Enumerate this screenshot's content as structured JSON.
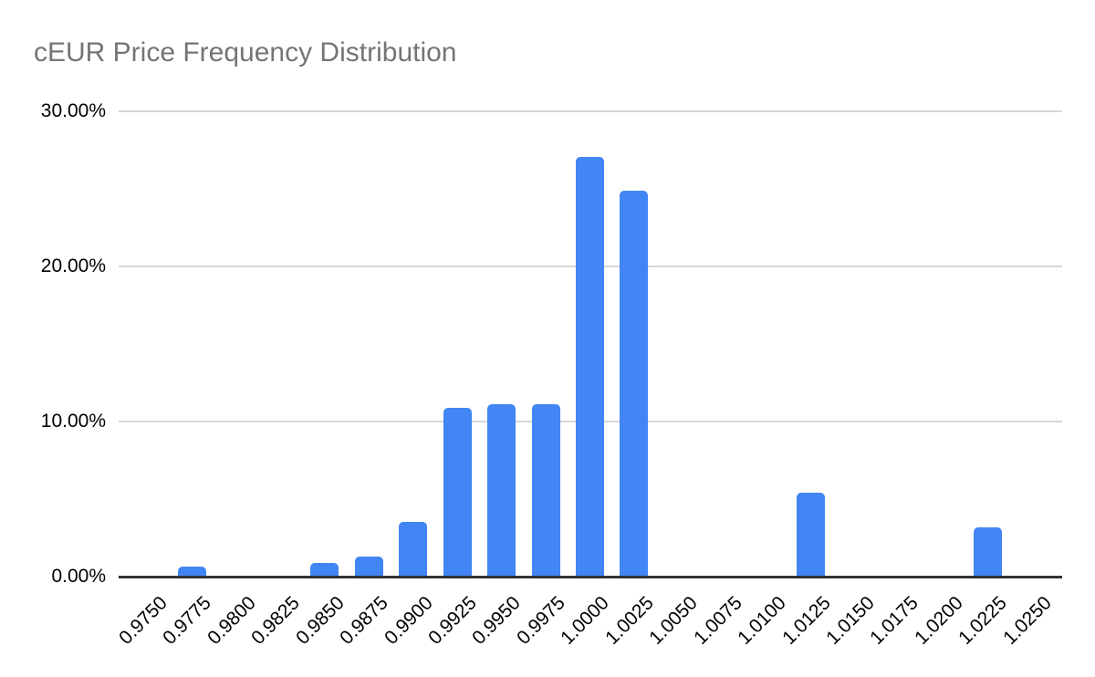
{
  "page": {
    "background": "#ffffff"
  },
  "chart_data": {
    "type": "bar",
    "title": "cEUR Price Frequency Distribution",
    "title_color": "#757575",
    "bar_color": "#4285f4",
    "axis_line_color": "#333333",
    "gridline_color": "#d6d6d6",
    "xlabel": "",
    "ylabel": "",
    "legend_position": "none",
    "grid": true,
    "ylim": [
      0,
      30
    ],
    "y_ticks": [
      {
        "label": "0.00%",
        "value": 0
      },
      {
        "label": "10.00%",
        "value": 10
      },
      {
        "label": "20.00%",
        "value": 20
      },
      {
        "label": "30.00%",
        "value": 30
      }
    ],
    "categories": [
      "0.9750",
      "0.9775",
      "0.9800",
      "0.9825",
      "0.9850",
      "0.9875",
      "0.9900",
      "0.9925",
      "0.9950",
      "0.9975",
      "1.0000",
      "1.0025",
      "1.0050",
      "1.0075",
      "1.0100",
      "1.0125",
      "1.0150",
      "1.0175",
      "1.0200",
      "1.0225",
      "1.0250"
    ],
    "values": [
      0,
      0.65,
      0,
      0,
      0.88,
      1.31,
      3.53,
      10.88,
      11.12,
      11.12,
      27.03,
      24.91,
      0,
      0,
      0,
      5.41,
      0,
      0,
      0,
      3.18,
      0
    ]
  }
}
